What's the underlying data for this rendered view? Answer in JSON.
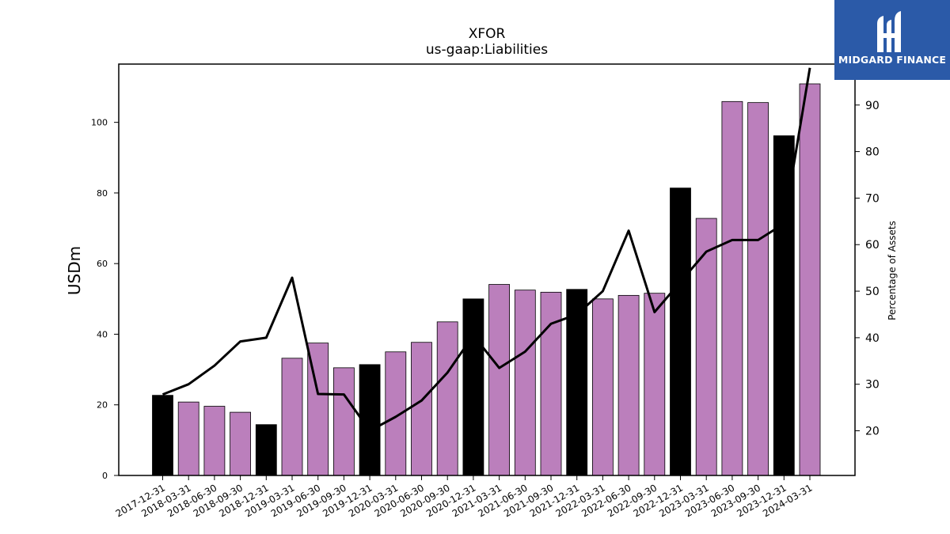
{
  "chart_data": {
    "type": "bar",
    "title": "XFOR",
    "subtitle": "us-gaap:Liabilities",
    "ylabel": "USDm",
    "y2label": "Percentage of Assets",
    "ylim": [
      0,
      116.5
    ],
    "y2lim": [
      10.4,
      98.8
    ],
    "yticks": [
      0,
      20,
      40,
      60,
      80,
      100
    ],
    "y2ticks": [
      20,
      30,
      40,
      50,
      60,
      70,
      80,
      90
    ],
    "categories": [
      "2017-12-31",
      "2018-03-31",
      "2018-06-30",
      "2018-09-30",
      "2018-12-31",
      "2019-03-31",
      "2019-06-30",
      "2019-09-30",
      "2019-12-31",
      "2020-03-31",
      "2020-06-30",
      "2020-09-30",
      "2020-12-31",
      "2021-03-31",
      "2021-06-30",
      "2021-09-30",
      "2021-12-31",
      "2022-03-31",
      "2022-06-30",
      "2022-09-30",
      "2022-12-31",
      "2023-03-31",
      "2023-06-30",
      "2023-09-30",
      "2023-12-31",
      "2024-03-31"
    ],
    "series": [
      {
        "type": "bar",
        "values": [
          22.7,
          20.8,
          19.6,
          17.9,
          14.4,
          33.2,
          37.5,
          30.5,
          31.4,
          35.0,
          37.7,
          43.5,
          50.0,
          54.1,
          52.5,
          51.9,
          52.7,
          50.0,
          51.0,
          51.6,
          81.4,
          72.8,
          105.9,
          105.6,
          96.2,
          110.9
        ]
      },
      {
        "type": "line",
        "axis": "right",
        "values": [
          27.8,
          30.0,
          34.0,
          39.2,
          40.0,
          52.9,
          27.9,
          27.8,
          20.0,
          23.0,
          26.5,
          32.5,
          40.5,
          33.5,
          37.0,
          43.0,
          45.0,
          50.0,
          63.0,
          45.5,
          52.0,
          58.5,
          61.0,
          61.0,
          64.5,
          98.0
        ]
      }
    ],
    "colors": {
      "bar": "#bb7fbc",
      "bar_highlight": "#000000",
      "line": "#000000",
      "edge": "#000000"
    },
    "highlighted_categories": [
      "2017-12-31",
      "2018-12-31",
      "2019-12-31",
      "2020-12-31",
      "2021-12-31",
      "2022-12-31",
      "2023-12-31"
    ],
    "grid": false,
    "legend": "none"
  },
  "logo": {
    "text": "MIDGARD FINANCE",
    "color": "#2b5aa8"
  }
}
